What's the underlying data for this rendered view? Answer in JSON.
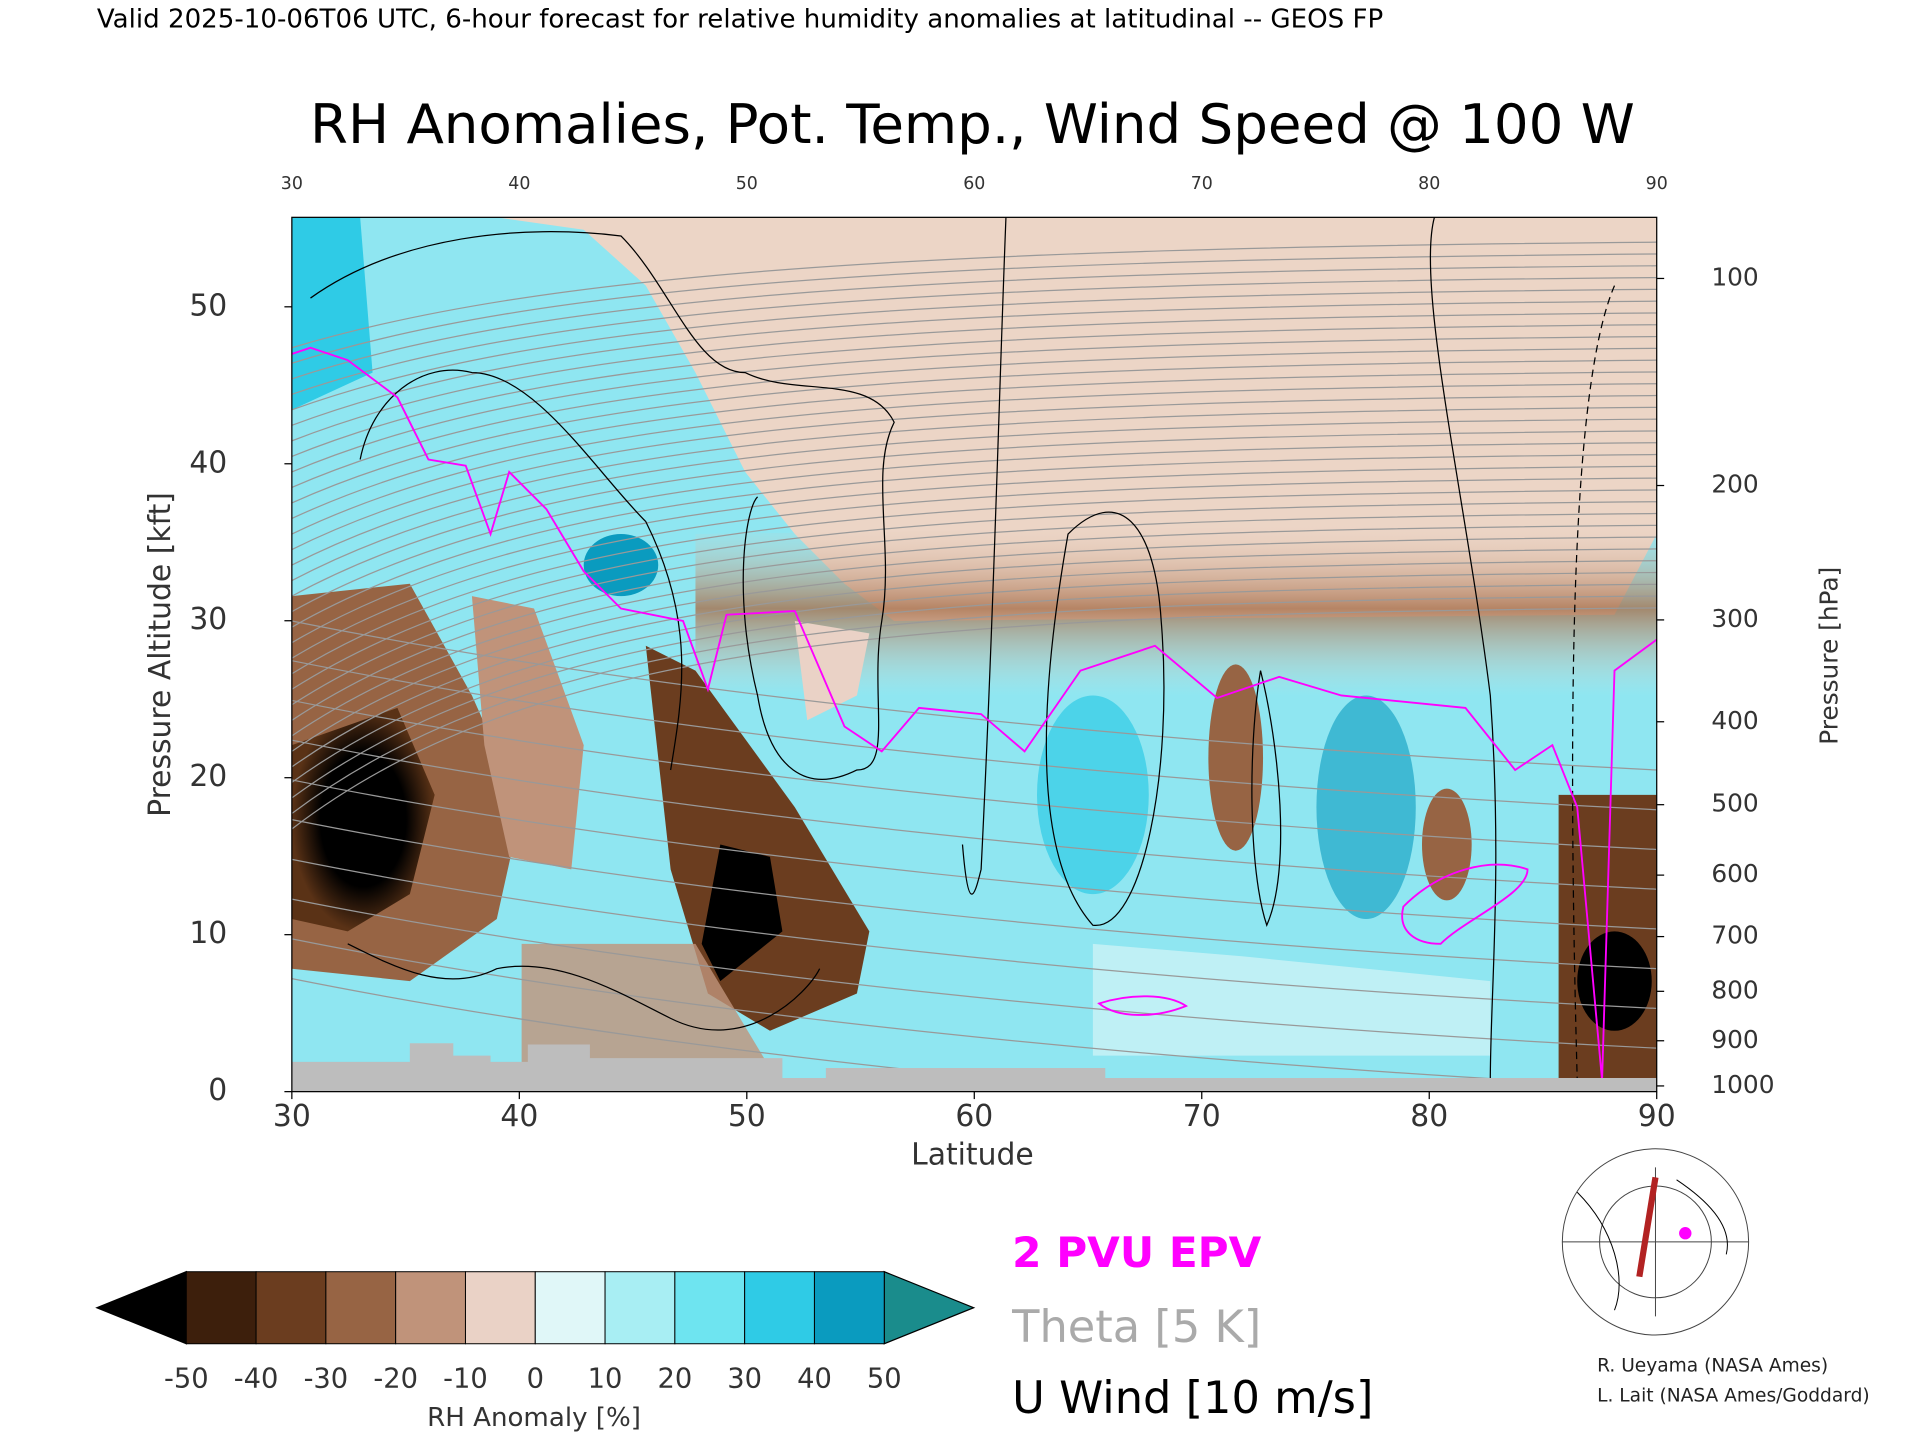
{
  "header": "Valid 2025-10-06T06 UTC, 6-hour forecast for relative humidity anomalies at latitudinal -- GEOS FP",
  "chart_data": {
    "type": "heatmap",
    "title": "RH Anomalies, Pot. Temp., Wind Speed @ 100 W",
    "x_label": "Latitude",
    "y_label": "Pressure Altitude [kft]",
    "y2_label": "Pressure [hPa]",
    "xlim": [
      30,
      90
    ],
    "xticks": [
      30,
      40,
      50,
      60,
      70,
      80,
      90
    ],
    "ylim": [
      0,
      55.7
    ],
    "yticks": [
      0,
      10,
      20,
      30,
      40,
      50
    ],
    "y2_scale": "pressure-altitude",
    "y2ticks": [
      100,
      200,
      300,
      400,
      500,
      600,
      700,
      800,
      900,
      1000
    ],
    "legend": [
      {
        "name": "2 PVU EPV",
        "color": "#ff00ff"
      },
      {
        "name": "Theta [5 K]",
        "color": "#aaaaaa"
      },
      {
        "name": "U Wind [10 m/s]",
        "color": "#000000"
      }
    ],
    "colorbar": {
      "label": "RH Anomaly [%]",
      "ticks": [
        -50,
        -40,
        -30,
        -20,
        -10,
        0,
        10,
        20,
        30,
        40,
        50
      ],
      "under_color": "#000000",
      "over_color": "#1a8c8c",
      "colors": [
        "#3d1f0c",
        "#6b3d1f",
        "#976444",
        "#c0937a",
        "#ead2c6",
        "#e0f7f8",
        "#a8eef3",
        "#6ee4f0",
        "#2fcbe6",
        "#0a9bbf"
      ]
    }
  },
  "credits": [
    "R. Ueyama (NASA Ames)",
    "L. Lait (NASA Ames/Goddard)"
  ]
}
